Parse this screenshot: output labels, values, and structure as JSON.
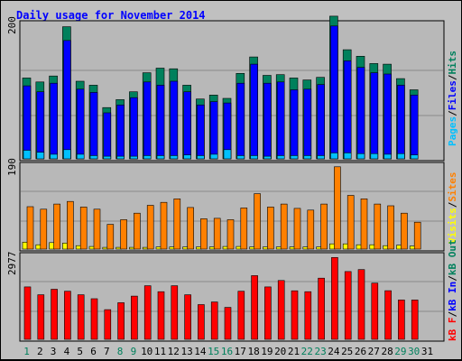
{
  "chart_data": [
    {
      "type": "bar",
      "title": "Daily usage for November 2014",
      "y_tick_label": "200",
      "ylim": [
        0,
        210
      ],
      "right_label": [
        "Pages",
        "/",
        "Files",
        "/",
        "Hits"
      ],
      "series": [
        {
          "name": "Hits",
          "color": "#00805c",
          "values": [
            123,
            117,
            126,
            201,
            118,
            112,
            78,
            90,
            102,
            131,
            138,
            137,
            112,
            91,
            97,
            92,
            130,
            155,
            127,
            128,
            123,
            120,
            124,
            217,
            166,
            156,
            145,
            144,
            122,
            105,
            0
          ]
        },
        {
          "name": "Files",
          "color": "#0000ff",
          "values": [
            111,
            102,
            115,
            180,
            106,
            101,
            70,
            82,
            93,
            117,
            112,
            118,
            102,
            82,
            87,
            85,
            115,
            144,
            115,
            117,
            105,
            106,
            113,
            202,
            149,
            139,
            131,
            129,
            112,
            97,
            0
          ]
        },
        {
          "name": "Pages",
          "color": "#00c0ff",
          "values": [
            13,
            10,
            7,
            14,
            7,
            5,
            4,
            4,
            4,
            5,
            5,
            5,
            6,
            5,
            7,
            14,
            5,
            5,
            4,
            5,
            5,
            5,
            5,
            9,
            9,
            8,
            8,
            7,
            8,
            6,
            0
          ]
        }
      ]
    },
    {
      "type": "bar",
      "y_tick_label": "190",
      "ylim": [
        0,
        200
      ],
      "right_label": [
        "Visits",
        "/",
        "Sites"
      ],
      "series": [
        {
          "name": "Visits",
          "color": "#ffff00",
          "values": [
            16,
            10,
            15,
            14,
            8,
            6,
            4,
            4,
            4,
            4,
            5,
            5,
            5,
            5,
            5,
            6,
            6,
            5,
            5,
            5,
            5,
            5,
            5,
            12,
            12,
            10,
            10,
            8,
            9,
            7,
            0
          ]
        },
        {
          "name": "Sites",
          "color": "#ff8000",
          "values": [
            98,
            92,
            104,
            110,
            97,
            92,
            57,
            68,
            83,
            101,
            108,
            116,
            96,
            70,
            71,
            68,
            95,
            128,
            97,
            104,
            94,
            90,
            104,
            190,
            124,
            116,
            104,
            100,
            83,
            62,
            0
          ]
        }
      ]
    },
    {
      "type": "bar",
      "y_tick_label": "2977",
      "ylim": [
        0,
        3150
      ],
      "right_label": [
        "kB F",
        "/",
        "kB In",
        "/",
        "kB Out"
      ],
      "series": [
        {
          "name": "kB F",
          "color": "#ff0000",
          "values": [
            1907,
            1622,
            1822,
            1750,
            1622,
            1475,
            1078,
            1331,
            1571,
            1950,
            1732,
            1950,
            1622,
            1264,
            1359,
            1163,
            1750,
            2316,
            1907,
            2139,
            1765,
            1732,
            2225,
            2977,
            2463,
            2536,
            2044,
            1768,
            1429,
            1429,
            0
          ]
        }
      ]
    }
  ],
  "x_labels": [
    "1",
    "2",
    "3",
    "4",
    "5",
    "6",
    "7",
    "8",
    "9",
    "10",
    "11",
    "12",
    "13",
    "14",
    "15",
    "16",
    "17",
    "18",
    "19",
    "20",
    "21",
    "22",
    "23",
    "24",
    "25",
    "26",
    "27",
    "28",
    "29",
    "30",
    "31"
  ],
  "weekend_days": [
    1,
    8,
    9,
    15,
    16,
    22,
    23,
    29,
    30
  ]
}
